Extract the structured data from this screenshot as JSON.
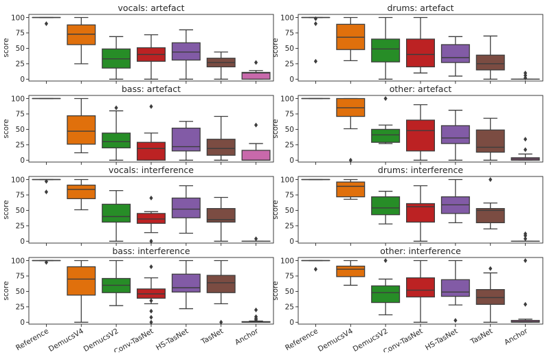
{
  "chart_data": {
    "type": "boxplot",
    "ylabel": "score",
    "ylim": [
      -3,
      105
    ],
    "yticks": [
      0,
      25,
      50,
      75,
      100
    ],
    "categories": [
      "Reference",
      "DemucsV4",
      "DemucsV2",
      "Conv-TasNet",
      "HS-TasNet",
      "TasNet",
      "Anchor"
    ],
    "colors": {
      "Reference": "#1f77b4",
      "DemucsV4": "#ff7f0e",
      "DemucsV2": "#2ca02c",
      "Conv-TasNet": "#d62728",
      "HS-TasNet": "#9467bd",
      "TasNet": "#8c564b",
      "Anchor": "#e377c2"
    },
    "panels": [
      {
        "title": "vocals: artefact",
        "boxes": [
          {
            "category": "Reference",
            "whislo": 100,
            "q1": 100,
            "med": 100,
            "q3": 100,
            "whishi": 100,
            "fliers": [
              90
            ]
          },
          {
            "category": "DemucsV4",
            "whislo": 25,
            "q1": 56,
            "med": 73,
            "q3": 88,
            "whishi": 100,
            "fliers": []
          },
          {
            "category": "DemucsV2",
            "whislo": 0,
            "q1": 18,
            "med": 33,
            "q3": 49,
            "whishi": 69,
            "fliers": []
          },
          {
            "category": "Conv-TasNet",
            "whislo": 0,
            "q1": 29,
            "med": 40,
            "q3": 51,
            "whishi": 72,
            "fliers": []
          },
          {
            "category": "HS-TasNet",
            "whislo": 0,
            "q1": 31,
            "med": 44,
            "q3": 59,
            "whishi": 80,
            "fliers": []
          },
          {
            "category": "TasNet",
            "whislo": 0,
            "q1": 20,
            "med": 27,
            "q3": 34,
            "whishi": 44,
            "fliers": []
          },
          {
            "category": "Anchor",
            "whislo": 0,
            "q1": 0,
            "med": 10,
            "q3": 11,
            "whishi": 14,
            "fliers": [
              27
            ]
          }
        ]
      },
      {
        "title": "drums: artefact",
        "boxes": [
          {
            "category": "Reference",
            "whislo": 100,
            "q1": 100,
            "med": 100,
            "q3": 100,
            "whishi": 100,
            "fliers": [
              98,
              90,
              29
            ]
          },
          {
            "category": "DemucsV4",
            "whislo": 30,
            "q1": 48,
            "med": 68,
            "q3": 89,
            "whishi": 100,
            "fliers": []
          },
          {
            "category": "DemucsV2",
            "whislo": 0,
            "q1": 28,
            "med": 49,
            "q3": 65,
            "whishi": 100,
            "fliers": []
          },
          {
            "category": "Conv-TasNet",
            "whislo": 10,
            "q1": 20,
            "med": 40,
            "q3": 65,
            "whishi": 100,
            "fliers": []
          },
          {
            "category": "HS-TasNet",
            "whislo": 5,
            "q1": 27,
            "med": 35,
            "q3": 56,
            "whishi": 69,
            "fliers": []
          },
          {
            "category": "TasNet",
            "whislo": 0,
            "q1": 15,
            "med": 25,
            "q3": 39,
            "whishi": 70,
            "fliers": []
          },
          {
            "category": "Anchor",
            "whislo": 0,
            "q1": 0,
            "med": 0,
            "q3": 0,
            "whishi": 0,
            "fliers": [
              10,
              6,
              2
            ]
          }
        ]
      },
      {
        "title": "bass: artefact",
        "boxes": [
          {
            "category": "Reference",
            "whislo": 100,
            "q1": 100,
            "med": 100,
            "q3": 100,
            "whishi": 100,
            "fliers": []
          },
          {
            "category": "DemucsV4",
            "whislo": 12,
            "q1": 26,
            "med": 47,
            "q3": 72,
            "whishi": 100,
            "fliers": []
          },
          {
            "category": "DemucsV2",
            "whislo": 0,
            "q1": 20,
            "med": 30,
            "q3": 44,
            "whishi": 80,
            "fliers": [
              85
            ]
          },
          {
            "category": "Conv-TasNet",
            "whislo": 0,
            "q1": 0,
            "med": 19,
            "q3": 29,
            "whishi": 44,
            "fliers": [
              87
            ]
          },
          {
            "category": "HS-TasNet",
            "whislo": 0,
            "q1": 15,
            "med": 22,
            "q3": 52,
            "whishi": 63,
            "fliers": []
          },
          {
            "category": "TasNet",
            "whislo": 0,
            "q1": 8,
            "med": 19,
            "q3": 34,
            "whishi": 71,
            "fliers": []
          },
          {
            "category": "Anchor",
            "whislo": 0,
            "q1": 0,
            "med": 0,
            "q3": 16,
            "whishi": 27,
            "fliers": [
              57
            ]
          }
        ]
      },
      {
        "title": "other: artefact",
        "boxes": [
          {
            "category": "Reference",
            "whislo": 100,
            "q1": 100,
            "med": 100,
            "q3": 100,
            "whishi": 100,
            "fliers": []
          },
          {
            "category": "DemucsV4",
            "whislo": 51,
            "q1": 71,
            "med": 85,
            "q3": 100,
            "whishi": 100,
            "fliers": [
              0
            ]
          },
          {
            "category": "DemucsV2",
            "whislo": 27,
            "q1": 29,
            "med": 41,
            "q3": 50,
            "whishi": 57,
            "fliers": [
              100
            ]
          },
          {
            "category": "Conv-TasNet",
            "whislo": 0,
            "q1": 15,
            "med": 48,
            "q3": 65,
            "whishi": 90,
            "fliers": []
          },
          {
            "category": "HS-TasNet",
            "whislo": 0,
            "q1": 27,
            "med": 36,
            "q3": 56,
            "whishi": 81,
            "fliers": []
          },
          {
            "category": "TasNet",
            "whislo": 0,
            "q1": 13,
            "med": 21,
            "q3": 49,
            "whishi": 68,
            "fliers": []
          },
          {
            "category": "Anchor",
            "whislo": 0,
            "q1": 0,
            "med": 2,
            "q3": 4,
            "whishi": 10,
            "fliers": [
              17,
              34
            ]
          }
        ]
      },
      {
        "title": "vocals: interference",
        "boxes": [
          {
            "category": "Reference",
            "whislo": 100,
            "q1": 100,
            "med": 100,
            "q3": 100,
            "whishi": 100,
            "fliers": [
              97,
              80
            ]
          },
          {
            "category": "DemucsV4",
            "whislo": 51,
            "q1": 69,
            "med": 84,
            "q3": 91,
            "whishi": 100,
            "fliers": []
          },
          {
            "category": "DemucsV2",
            "whislo": 0,
            "q1": 31,
            "med": 40,
            "q3": 60,
            "whishi": 82,
            "fliers": []
          },
          {
            "category": "Conv-TasNet",
            "whislo": 14,
            "q1": 29,
            "med": 36,
            "q3": 45,
            "whishi": 48,
            "fliers": [
              70,
              0
            ]
          },
          {
            "category": "HS-TasNet",
            "whislo": 13,
            "q1": 38,
            "med": 52,
            "q3": 70,
            "whishi": 90,
            "fliers": []
          },
          {
            "category": "TasNet",
            "whislo": 0,
            "q1": 31,
            "med": 35,
            "q3": 53,
            "whishi": 71,
            "fliers": []
          },
          {
            "category": "Anchor",
            "whislo": 0,
            "q1": 0,
            "med": 0,
            "q3": 0,
            "whishi": 0,
            "fliers": [
              4
            ]
          }
        ]
      },
      {
        "title": "drums: interference",
        "boxes": [
          {
            "category": "Reference",
            "whislo": 100,
            "q1": 100,
            "med": 100,
            "q3": 100,
            "whishi": 100,
            "fliers": []
          },
          {
            "category": "DemucsV4",
            "whislo": 68,
            "q1": 72,
            "med": 89,
            "q3": 96,
            "whishi": 100,
            "fliers": []
          },
          {
            "category": "DemucsV2",
            "whislo": 28,
            "q1": 43,
            "med": 54,
            "q3": 72,
            "whishi": 81,
            "fliers": []
          },
          {
            "category": "Conv-TasNet",
            "whislo": 0,
            "q1": 31,
            "med": 56,
            "q3": 61,
            "whishi": 90,
            "fliers": []
          },
          {
            "category": "HS-TasNet",
            "whislo": 30,
            "q1": 45,
            "med": 59,
            "q3": 72,
            "whishi": 100,
            "fliers": []
          },
          {
            "category": "TasNet",
            "whislo": 20,
            "q1": 30,
            "med": 50,
            "q3": 53,
            "whishi": 62,
            "fliers": [
              100
            ]
          },
          {
            "category": "Anchor",
            "whislo": 0,
            "q1": 0,
            "med": 0,
            "q3": 0,
            "whishi": 0,
            "fliers": [
              12,
              9,
              4
            ]
          }
        ]
      },
      {
        "title": "bass: interference",
        "boxes": [
          {
            "category": "Reference",
            "whislo": 100,
            "q1": 100,
            "med": 100,
            "q3": 100,
            "whishi": 100,
            "fliers": [
              97
            ]
          },
          {
            "category": "DemucsV4",
            "whislo": 0,
            "q1": 44,
            "med": 70,
            "q3": 90,
            "whishi": 100,
            "fliers": []
          },
          {
            "category": "DemucsV2",
            "whislo": 27,
            "q1": 48,
            "med": 60,
            "q3": 71,
            "whishi": 100,
            "fliers": []
          },
          {
            "category": "Conv-TasNet",
            "whislo": 30,
            "q1": 39,
            "med": 46,
            "q3": 54,
            "whishi": 72,
            "fliers": [
              90,
              35,
              18,
              8,
              0
            ]
          },
          {
            "category": "HS-TasNet",
            "whislo": 22,
            "q1": 49,
            "med": 56,
            "q3": 78,
            "whishi": 100,
            "fliers": []
          },
          {
            "category": "TasNet",
            "whislo": 30,
            "q1": 48,
            "med": 64,
            "q3": 76,
            "whishi": 100,
            "fliers": [
              0
            ]
          },
          {
            "category": "Anchor",
            "whislo": 0,
            "q1": 0,
            "med": 0,
            "q3": 1,
            "whishi": 2,
            "fliers": [
              20,
              9,
              6,
              4
            ]
          }
        ]
      },
      {
        "title": "other: interference",
        "boxes": [
          {
            "category": "Reference",
            "whislo": 100,
            "q1": 100,
            "med": 100,
            "q3": 100,
            "whishi": 100,
            "fliers": [
              86
            ]
          },
          {
            "category": "DemucsV4",
            "whislo": 60,
            "q1": 74,
            "med": 86,
            "q3": 91,
            "whishi": 100,
            "fliers": []
          },
          {
            "category": "DemucsV2",
            "whislo": 12,
            "q1": 32,
            "med": 48,
            "q3": 59,
            "whishi": 70,
            "fliers": [
              100
            ]
          },
          {
            "category": "Conv-TasNet",
            "whislo": 0,
            "q1": 41,
            "med": 52,
            "q3": 72,
            "whishi": 100,
            "fliers": []
          },
          {
            "category": "HS-TasNet",
            "whislo": 28,
            "q1": 42,
            "med": 49,
            "q3": 69,
            "whishi": 100,
            "fliers": [
              3
            ]
          },
          {
            "category": "TasNet",
            "whislo": 0,
            "q1": 29,
            "med": 40,
            "q3": 53,
            "whishi": 80,
            "fliers": [
              87
            ]
          },
          {
            "category": "Anchor",
            "whislo": 0,
            "q1": 0,
            "med": 1,
            "q3": 3,
            "whishi": 5,
            "fliers": [
              100,
              29
            ]
          }
        ]
      }
    ]
  }
}
